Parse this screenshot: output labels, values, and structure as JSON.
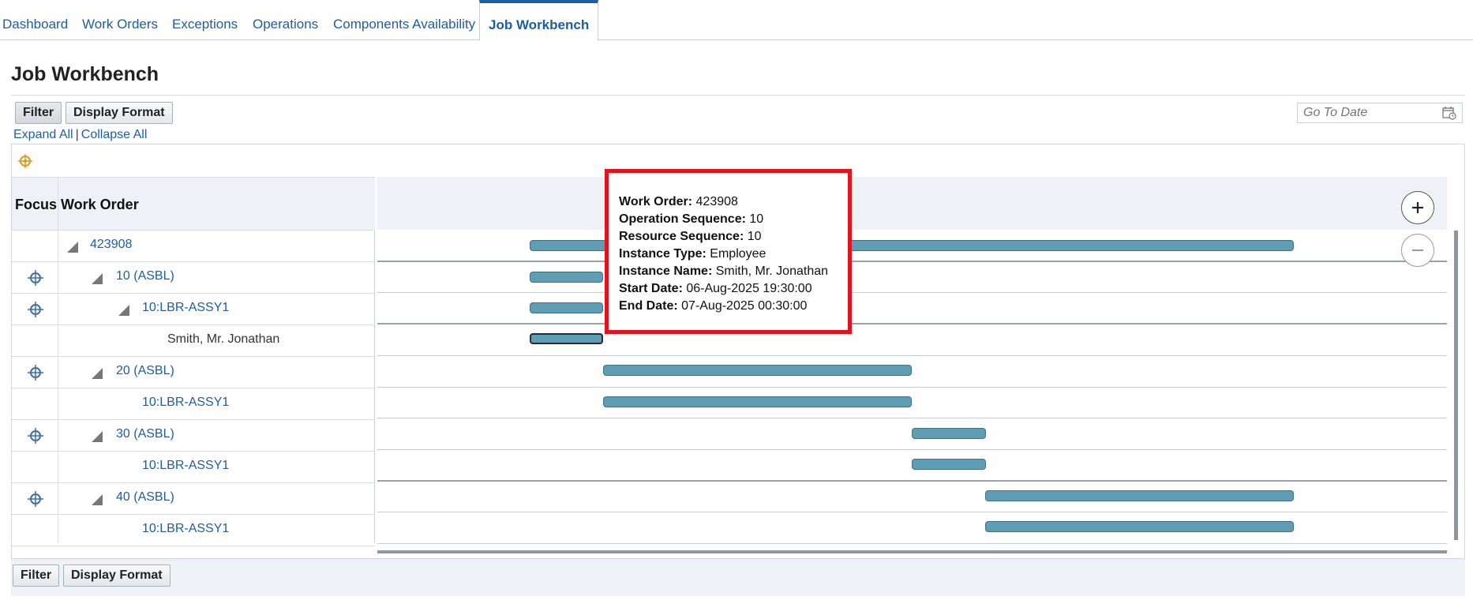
{
  "tabs": [
    {
      "label": "Dashboard"
    },
    {
      "label": "Work Orders"
    },
    {
      "label": "Exceptions"
    },
    {
      "label": "Operations"
    },
    {
      "label": "Components Availability"
    },
    {
      "label": "Job Workbench",
      "active": true
    }
  ],
  "page": {
    "title": "Job Workbench"
  },
  "toolbar": {
    "filter_label": "Filter",
    "display_format_label": "Display Format"
  },
  "goto_date": {
    "placeholder": "Go To Date",
    "value": ""
  },
  "tree_actions": {
    "expand_all": "Expand All",
    "separator": "|",
    "collapse_all": "Collapse All"
  },
  "table": {
    "headers": {
      "focus": "Focus",
      "work_order": "Work Order"
    },
    "rows": [
      {
        "label": "423908"
      },
      {
        "label": "10 (ASBL)"
      },
      {
        "label": "10:LBR-ASSY1"
      },
      {
        "label": "Smith, Mr. Jonathan"
      },
      {
        "label": "20 (ASBL)"
      },
      {
        "label": "10:LBR-ASSY1"
      },
      {
        "label": "30 (ASBL)"
      },
      {
        "label": "10:LBR-ASSY1"
      },
      {
        "label": "40 (ASBL)"
      },
      {
        "label": "10:LBR-ASSY1"
      }
    ]
  },
  "tooltip": {
    "work_order_label": "Work Order:",
    "work_order": "423908",
    "op_seq_label": "Operation Sequence:",
    "op_seq": "10",
    "res_seq_label": "Resource Sequence:",
    "res_seq": "10",
    "instance_type_label": "Instance Type:",
    "instance_type": "Employee",
    "instance_name_label": "Instance Name:",
    "instance_name": "Smith, Mr. Jonathan",
    "start_date_label": "Start Date:",
    "start_date": "06-Aug-2025 19:30:00",
    "end_date_label": "End Date:",
    "end_date": "07-Aug-2025 00:30:00"
  },
  "colors": {
    "accent": "#1b5ea8",
    "bar": "#5f9db4",
    "tooltip_border": "#e0141e"
  },
  "icons": [
    "focus-target-icon",
    "expand-triangle-icon",
    "calendar-icon",
    "zoom-in-icon",
    "zoom-out-icon"
  ]
}
